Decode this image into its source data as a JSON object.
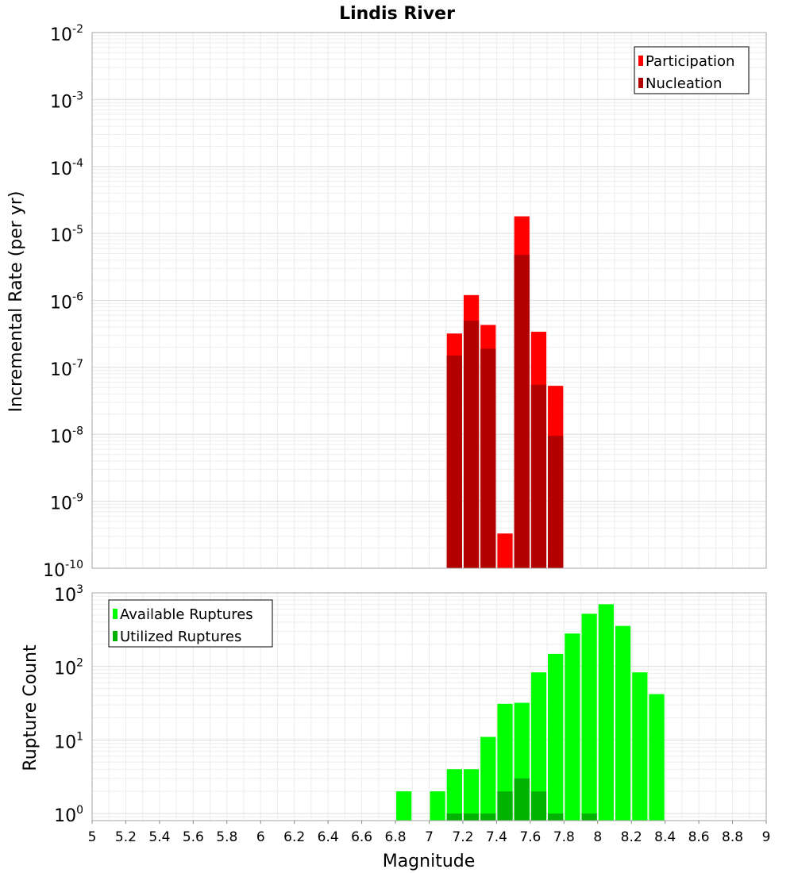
{
  "chart_data": [
    {
      "type": "bar",
      "title": "Lindis River",
      "ylabel": "Incremental Rate (per yr)",
      "yscale": "log",
      "ylim": [
        1e-10,
        0.01
      ],
      "xlim": [
        5,
        9
      ],
      "grid": true,
      "legend_position": "top-right",
      "y_ticks": [
        {
          "base": "10",
          "exp": "-10"
        },
        {
          "base": "10",
          "exp": "-9"
        },
        {
          "base": "10",
          "exp": "-8"
        },
        {
          "base": "10",
          "exp": "-7"
        },
        {
          "base": "10",
          "exp": "-6"
        },
        {
          "base": "10",
          "exp": "-5"
        },
        {
          "base": "10",
          "exp": "-4"
        },
        {
          "base": "10",
          "exp": "-3"
        },
        {
          "base": "10",
          "exp": "-2"
        }
      ],
      "series": [
        {
          "name": "Participation",
          "color": "#ff0000",
          "points": [
            {
              "x": 7.15,
              "y": 3.2e-07
            },
            {
              "x": 7.25,
              "y": 1.2e-06
            },
            {
              "x": 7.35,
              "y": 4.3e-07
            },
            {
              "x": 7.45,
              "y": 3.3e-10
            },
            {
              "x": 7.55,
              "y": 1.8e-05
            },
            {
              "x": 7.65,
              "y": 3.4e-07
            },
            {
              "x": 7.75,
              "y": 5.3e-08
            }
          ]
        },
        {
          "name": "Nucleation",
          "color": "#b30000",
          "points": [
            {
              "x": 7.15,
              "y": 1.5e-07
            },
            {
              "x": 7.25,
              "y": 5e-07
            },
            {
              "x": 7.35,
              "y": 1.9e-07
            },
            {
              "x": 7.55,
              "y": 4.8e-06
            },
            {
              "x": 7.65,
              "y": 5.5e-08
            },
            {
              "x": 7.75,
              "y": 9.5e-09
            }
          ]
        }
      ]
    },
    {
      "type": "bar",
      "xlabel": "Magnitude",
      "ylabel": "Rupture Count",
      "yscale": "log",
      "ylim": [
        0.8,
        1000
      ],
      "xlim": [
        5,
        9
      ],
      "grid": true,
      "legend_position": "top-left",
      "x_ticks": [
        "5",
        "5.2",
        "5.4",
        "5.6",
        "5.8",
        "6",
        "6.2",
        "6.4",
        "6.6",
        "6.8",
        "7",
        "7.2",
        "7.4",
        "7.6",
        "7.8",
        "8",
        "8.2",
        "8.4",
        "8.6",
        "8.8",
        "9"
      ],
      "y_ticks": [
        {
          "base": "10",
          "exp": "0"
        },
        {
          "base": "10",
          "exp": "1"
        },
        {
          "base": "10",
          "exp": "2"
        },
        {
          "base": "10",
          "exp": "3"
        }
      ],
      "series": [
        {
          "name": "Available Ruptures",
          "color": "#00ff00",
          "points": [
            {
              "x": 6.85,
              "y": 2
            },
            {
              "x": 7.05,
              "y": 2
            },
            {
              "x": 7.15,
              "y": 4
            },
            {
              "x": 7.25,
              "y": 4
            },
            {
              "x": 7.35,
              "y": 11
            },
            {
              "x": 7.45,
              "y": 31
            },
            {
              "x": 7.55,
              "y": 32
            },
            {
              "x": 7.65,
              "y": 83
            },
            {
              "x": 7.75,
              "y": 148
            },
            {
              "x": 7.85,
              "y": 280
            },
            {
              "x": 7.95,
              "y": 520
            },
            {
              "x": 8.05,
              "y": 700
            },
            {
              "x": 8.15,
              "y": 355
            },
            {
              "x": 8.25,
              "y": 83
            },
            {
              "x": 8.35,
              "y": 42
            }
          ]
        },
        {
          "name": "Utilized Ruptures",
          "color": "#00b300",
          "points": [
            {
              "x": 7.15,
              "y": 1
            },
            {
              "x": 7.25,
              "y": 1
            },
            {
              "x": 7.35,
              "y": 1
            },
            {
              "x": 7.45,
              "y": 2
            },
            {
              "x": 7.55,
              "y": 3
            },
            {
              "x": 7.65,
              "y": 2
            },
            {
              "x": 7.75,
              "y": 1
            },
            {
              "x": 7.95,
              "y": 1
            }
          ]
        }
      ]
    }
  ]
}
